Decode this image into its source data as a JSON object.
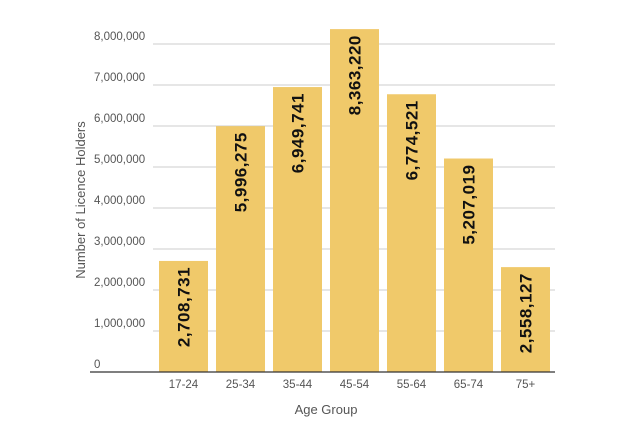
{
  "chart_data": {
    "type": "bar",
    "title": "",
    "xlabel": "Age Group",
    "ylabel": "Number of Licence Holders",
    "categories": [
      "17-24",
      "25-34",
      "35-44",
      "45-54",
      "55-64",
      "65-74",
      "75+"
    ],
    "values": [
      2708731,
      5996275,
      6949741,
      8363220,
      6774521,
      5207019,
      2558127
    ],
    "data_labels": [
      "2,708,731",
      "5,996,275",
      "6,949,741",
      "8,363,220",
      "6,774,521",
      "5,207,019",
      "2,558,127"
    ],
    "yticks": [
      0,
      1000000,
      2000000,
      3000000,
      4000000,
      5000000,
      6000000,
      7000000,
      8000000
    ],
    "ytick_labels": [
      "0",
      "1,000,000",
      "2,000,000",
      "3,000,000",
      "4,000,000",
      "5,000,000",
      "6,000,000",
      "7,000,000",
      "8,000,000"
    ],
    "ylim": [
      0,
      8000000
    ],
    "grid": true,
    "legend": "none",
    "colors": {
      "bar": "#f0c96a",
      "grid": "#cccccc",
      "baseline": "#333333"
    }
  }
}
